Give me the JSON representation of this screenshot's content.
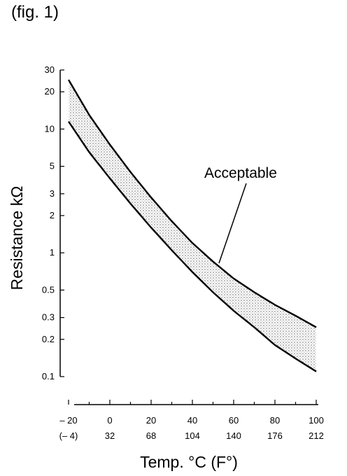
{
  "figure_label": "(fig. 1)",
  "chart_data": {
    "type": "area",
    "title": "",
    "xlabel": "Temp. °C (F°)",
    "ylabel": "Resistance kΩ",
    "y_scale": "log",
    "ylim": [
      0.1,
      30
    ],
    "xlim": [
      -20,
      100
    ],
    "grid": false,
    "y_ticks": [
      0.1,
      0.2,
      0.3,
      0.5,
      1,
      2,
      3,
      5,
      10,
      20,
      30
    ],
    "y_tick_labels": [
      "0.1",
      "0.2",
      "0.3",
      "0.5",
      "1",
      "2",
      "3",
      "5",
      "10",
      "20",
      "30"
    ],
    "x_ticks": [
      -20,
      0,
      20,
      40,
      60,
      80,
      100
    ],
    "x_tick_labels_c": [
      "– 20",
      "0",
      "20",
      "40",
      "60",
      "80",
      "100"
    ],
    "x_tick_labels_f": [
      "(– 4)",
      "32",
      "68",
      "104",
      "140",
      "176",
      "212"
    ],
    "series": [
      {
        "x": [
          -20,
          -10,
          0,
          10,
          20,
          30,
          40,
          50,
          60,
          70,
          80,
          90,
          100
        ],
        "values": [
          25,
          13,
          7.5,
          4.5,
          2.8,
          1.8,
          1.2,
          0.85,
          0.62,
          0.48,
          0.38,
          0.31,
          0.25
        ]
      },
      {
        "x": [
          -20,
          -10,
          0,
          10,
          20,
          30,
          40,
          50,
          60,
          70,
          80,
          90,
          100
        ],
        "values": [
          11.5,
          6.5,
          4.0,
          2.5,
          1.6,
          1.05,
          0.7,
          0.48,
          0.34,
          0.25,
          0.18,
          0.14,
          0.11
        ]
      }
    ],
    "band_label": "Acceptable"
  }
}
